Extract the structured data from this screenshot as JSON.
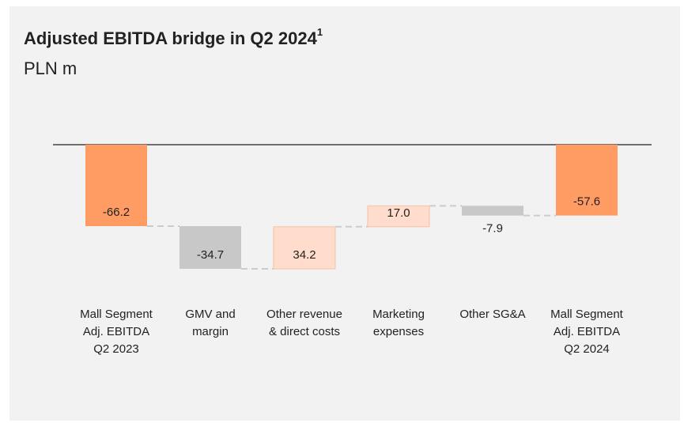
{
  "chart_data": {
    "type": "waterfall",
    "title": "Adjusted EBITDA bridge in Q2 2024",
    "title_superscript": "1",
    "subtitle": "PLN m",
    "categories": [
      [
        "Mall Segment",
        "Adj. EBITDA",
        "Q2 2023"
      ],
      [
        "GMV and",
        "margin"
      ],
      [
        "Other revenue",
        "& direct costs"
      ],
      [
        "Marketing",
        "expenses"
      ],
      [
        "Other SG&A"
      ],
      [
        "Mall Segment",
        "Adj. EBITDA",
        "Q2 2024"
      ]
    ],
    "measure": [
      "total",
      "relative",
      "relative",
      "relative",
      "relative",
      "total"
    ],
    "values": [
      -66.2,
      -34.7,
      34.2,
      17.0,
      -7.9,
      -57.6
    ],
    "value_labels": [
      "-66.2",
      "-34.7",
      "34.2",
      "17.0",
      "-7.9",
      "-57.6"
    ],
    "colors": {
      "total": "#ff9c64",
      "decrease": "#c8c8c8",
      "increase": "#ffdccb"
    }
  }
}
